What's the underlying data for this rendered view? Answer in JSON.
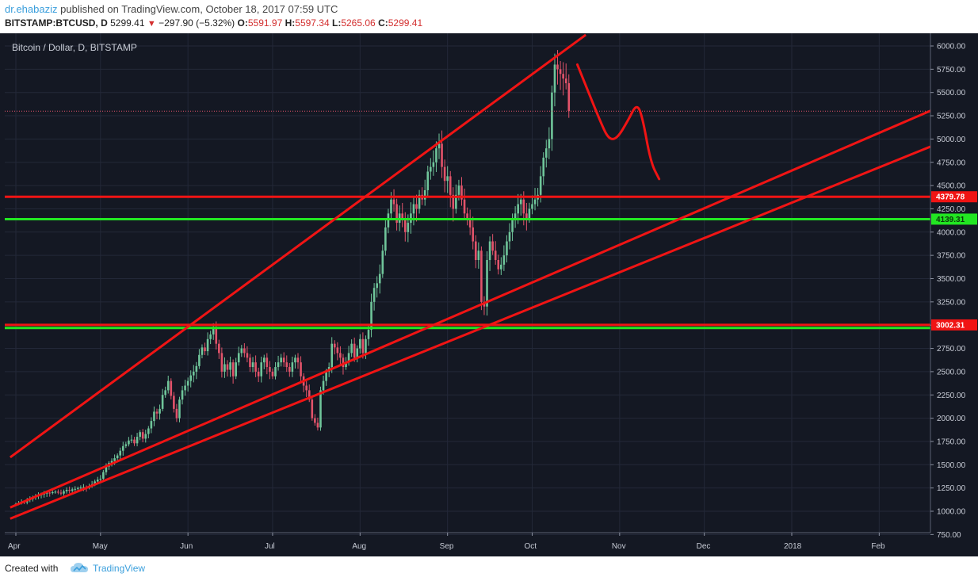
{
  "header": {
    "author": "dr.ehabaziz",
    "published": "published on TradingView.com, October 18, 2017 07:59 UTC",
    "symbol": "BITSTAMP:BTCUSD, D",
    "last": "5299.41",
    "change": "−297.90 (−5.32%)",
    "o_label": "O:",
    "o_value": "5591.97",
    "h_label": "H:",
    "h_value": "5597.34",
    "l_label": "L:",
    "l_value": "5265.06",
    "c_label": "C:",
    "c_value": "5299.41"
  },
  "chart_title": "Bitcoin / Dollar, D, BITSTAMP",
  "footer": {
    "created_with": "Created with",
    "brand": "TradingView"
  },
  "colors": {
    "background": "#141823",
    "grid": "#232838",
    "up": "#6fc59a",
    "down": "#e2536a",
    "drawing_red": "#f01414",
    "drawing_green": "#22e622",
    "brand": "#3b9fdc"
  },
  "chart_data": {
    "type": "candlestick",
    "title": "Bitcoin / Dollar, D, BITSTAMP",
    "y_ticks": [
      "750.00",
      "1000.00",
      "1250.00",
      "1500.00",
      "1750.00",
      "2000.00",
      "2250.00",
      "2500.00",
      "2750.00",
      "3000.00",
      "3250.00",
      "3500.00",
      "3750.00",
      "4000.00",
      "4250.00",
      "4500.00",
      "4750.00",
      "5000.00",
      "5250.00",
      "5500.00",
      "5750.00",
      "6000.00"
    ],
    "x_ticks": [
      "Apr",
      "May",
      "Jun",
      "Jul",
      "Aug",
      "Sep",
      "Oct",
      "Nov",
      "Dec",
      "2018",
      "Feb"
    ],
    "ylim": [
      750,
      6050
    ],
    "horizontal_levels": [
      {
        "label": "4379.78",
        "value": 4379.78,
        "color": "red"
      },
      {
        "label": "4139.31",
        "value": 4139.31,
        "color": "green"
      },
      {
        "label": "3002.31",
        "value": 3002.31,
        "color": "red"
      },
      {
        "value": 2970,
        "color": "green"
      }
    ],
    "last_price": 5299.41,
    "trend_lines": [
      {
        "from": [
          "2017-03-30",
          1580
        ],
        "to": [
          "2017-10-20",
          6120
        ]
      },
      {
        "from": [
          "2017-03-30",
          1040
        ],
        "to": [
          "2018-02-25",
          5380
        ]
      },
      {
        "from": [
          "2017-03-30",
          920
        ],
        "to": [
          "2018-02-25",
          4990
        ]
      }
    ],
    "forecast_path": [
      [
        "2017-10-17",
        5800
      ],
      [
        "2017-10-21",
        5500
      ],
      [
        "2017-10-25",
        5200
      ],
      [
        "2017-10-28",
        5000
      ],
      [
        "2017-10-31",
        5000
      ],
      [
        "2017-11-04",
        5200
      ],
      [
        "2017-11-07",
        5380
      ],
      [
        "2017-11-09",
        5250
      ],
      [
        "2017-11-12",
        4750
      ],
      [
        "2017-11-15",
        4570
      ]
    ],
    "close_series": {
      "start_date": "2017-04-01",
      "values": [
        1080,
        1090,
        1100,
        1095,
        1120,
        1130,
        1150,
        1160,
        1170,
        1180,
        1190,
        1200,
        1195,
        1205,
        1210,
        1200,
        1190,
        1215,
        1230,
        1220,
        1235,
        1240,
        1250,
        1255,
        1260,
        1250,
        1270,
        1290,
        1320,
        1340,
        1350,
        1420,
        1480,
        1520,
        1540,
        1570,
        1600,
        1650,
        1700,
        1720,
        1760,
        1770,
        1730,
        1800,
        1850,
        1780,
        1830,
        1890,
        1970,
        2070,
        2050,
        2100,
        2250,
        2300,
        2400,
        2240,
        2100,
        2000,
        2200,
        2300,
        2350,
        2400,
        2460,
        2500,
        2560,
        2680,
        2760,
        2720,
        2850,
        2900,
        2960,
        2800,
        2700,
        2500,
        2580,
        2520,
        2600,
        2450,
        2600,
        2700,
        2750,
        2700,
        2650,
        2550,
        2600,
        2500,
        2450,
        2600,
        2650,
        2550,
        2500,
        2450,
        2550,
        2600,
        2650,
        2600,
        2550,
        2500,
        2600,
        2650,
        2600,
        2450,
        2350,
        2300,
        2200,
        2000,
        1950,
        1900,
        2300,
        2400,
        2500,
        2550,
        2800,
        2760,
        2700,
        2650,
        2550,
        2600,
        2700,
        2800,
        2650,
        2750,
        2850,
        2700,
        2850,
        2950,
        3250,
        3400,
        3450,
        3550,
        3800,
        4050,
        4200,
        4350,
        4300,
        4100,
        4200,
        4150,
        4000,
        4100,
        4200,
        4300,
        4250,
        4400,
        4350,
        4450,
        4650,
        4700,
        4750,
        4900,
        4950,
        4700,
        4550,
        4600,
        4400,
        4250,
        4400,
        4500,
        4350,
        4200,
        4150,
        4050,
        3900,
        3700,
        3800,
        3250,
        3200,
        3700,
        3900,
        3800,
        3700,
        3600,
        3650,
        3750,
        3900,
        4000,
        4150,
        4200,
        4300,
        4350,
        4200,
        4150,
        4250,
        4300,
        4350,
        4400,
        4600,
        4800,
        4900,
        5000,
        5500,
        5800,
        5750,
        5700,
        5650,
        5600,
        5300
      ]
    }
  }
}
